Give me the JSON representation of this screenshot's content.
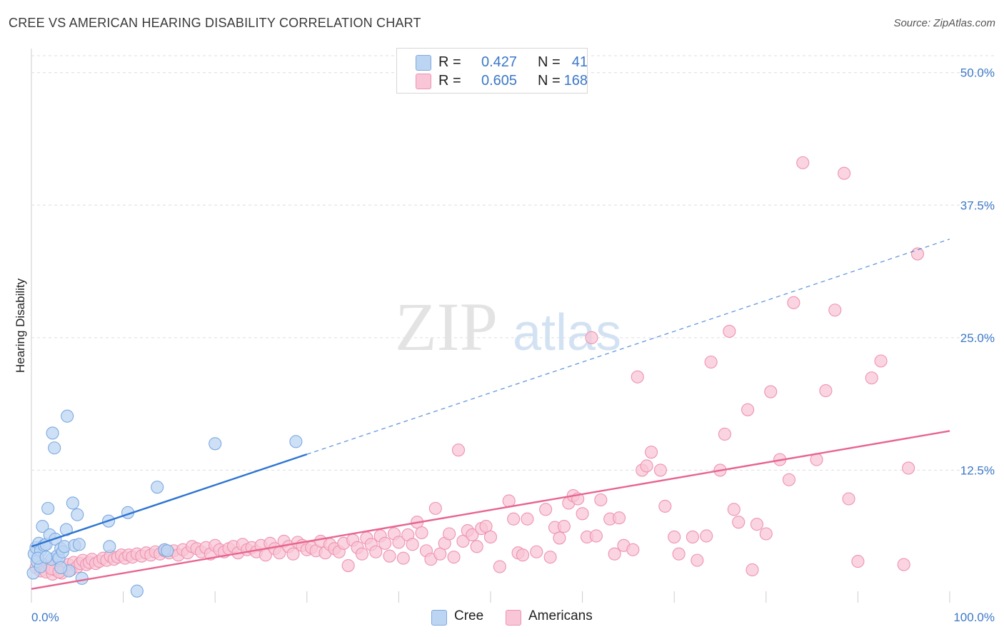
{
  "title": "CREE VS AMERICAN HEARING DISABILITY CORRELATION CHART",
  "source": "Source: ZipAtlas.com",
  "watermark": {
    "zip": "ZIP",
    "atlas": "atlas"
  },
  "colors": {
    "cree": "#7ea9e0",
    "cree_fill": "#bcd5f3",
    "cree_line": "#2d74d2",
    "americans": "#ee93b0",
    "americans_fill": "#f8c6d6",
    "americans_line": "#e8648f",
    "tick": "#3c78c8",
    "grid": "#dddddd"
  },
  "legend": {
    "rows": [
      {
        "series": "Cree",
        "r_label": "R =",
        "r_value": "0.427",
        "n_label": "N =",
        "n_value": "41"
      },
      {
        "series": "Americans",
        "r_label": "R =",
        "r_value": "0.605",
        "n_label": "N =",
        "n_value": "168"
      }
    ]
  },
  "bottom_legend": [
    {
      "label": "Cree"
    },
    {
      "label": "Americans"
    }
  ],
  "chart_data": {
    "type": "scatter",
    "title": "CREE VS AMERICAN HEARING DISABILITY CORRELATION CHART",
    "xlabel": "",
    "ylabel": "Hearing Disability",
    "xlim": [
      0,
      100
    ],
    "ylim": [
      0,
      52
    ],
    "x_tick_labels": [
      "0.0%",
      "100.0%"
    ],
    "y_ticks": [
      12.5,
      25.0,
      37.5,
      50.0
    ],
    "y_tick_labels": [
      "12.5%",
      "25.0%",
      "37.5%",
      "50.0%"
    ],
    "grid": "horizontal dashed",
    "legend_placement": "top-center",
    "series": [
      {
        "name": "Cree",
        "trend": {
          "x0": 0,
          "y0": 5.3,
          "x1": 30,
          "y1": 14.0,
          "dashed_to_x": 100,
          "dashed_to_y": 34.3
        },
        "points": [
          [
            0.2,
            2.8
          ],
          [
            0.3,
            4.6
          ],
          [
            0.5,
            5.2
          ],
          [
            0.6,
            3.9
          ],
          [
            0.8,
            5.6
          ],
          [
            1.0,
            4.9
          ],
          [
            1.2,
            7.2
          ],
          [
            1.4,
            5.4
          ],
          [
            1.6,
            5.5
          ],
          [
            1.8,
            8.9
          ],
          [
            2.0,
            6.4
          ],
          [
            2.2,
            4.1
          ],
          [
            2.3,
            16.0
          ],
          [
            2.5,
            14.6
          ],
          [
            2.6,
            6.0
          ],
          [
            2.8,
            4.4
          ],
          [
            3.0,
            4.2
          ],
          [
            3.2,
            5.1
          ],
          [
            3.4,
            4.8
          ],
          [
            3.6,
            5.3
          ],
          [
            3.8,
            6.9
          ],
          [
            3.9,
            17.6
          ],
          [
            4.1,
            3.0
          ],
          [
            4.5,
            9.4
          ],
          [
            4.7,
            5.4
          ],
          [
            5.0,
            8.3
          ],
          [
            5.2,
            5.5
          ],
          [
            5.5,
            2.3
          ],
          [
            8.4,
            7.7
          ],
          [
            8.5,
            5.3
          ],
          [
            10.5,
            8.5
          ],
          [
            11.5,
            1.1
          ],
          [
            13.7,
            10.9
          ],
          [
            14.5,
            5.0
          ],
          [
            14.8,
            4.9
          ],
          [
            20.0,
            15.0
          ],
          [
            28.8,
            15.2
          ],
          [
            1.0,
            3.4
          ],
          [
            0.7,
            4.2
          ],
          [
            1.6,
            4.3
          ],
          [
            3.2,
            3.3
          ]
        ]
      },
      {
        "name": "Americans",
        "trend": {
          "x0": 0,
          "y0": 1.3,
          "x1": 100,
          "y1": 16.2
        },
        "points": [
          [
            0.5,
            3.3
          ],
          [
            1.0,
            3.0
          ],
          [
            1.3,
            3.6
          ],
          [
            1.6,
            2.9
          ],
          [
            2.0,
            3.4
          ],
          [
            2.3,
            2.7
          ],
          [
            2.6,
            3.1
          ],
          [
            3.0,
            3.5
          ],
          [
            3.3,
            2.8
          ],
          [
            3.6,
            3.3
          ],
          [
            4.0,
            3.6
          ],
          [
            4.3,
            3.1
          ],
          [
            4.6,
            3.8
          ],
          [
            5.0,
            3.4
          ],
          [
            5.3,
            3.7
          ],
          [
            5.6,
            4.0
          ],
          [
            6.0,
            3.6
          ],
          [
            6.3,
            3.8
          ],
          [
            6.6,
            4.1
          ],
          [
            7.0,
            3.7
          ],
          [
            7.4,
            3.9
          ],
          [
            7.8,
            4.2
          ],
          [
            8.2,
            4.0
          ],
          [
            8.6,
            4.4
          ],
          [
            9.0,
            4.1
          ],
          [
            9.4,
            4.3
          ],
          [
            9.8,
            4.5
          ],
          [
            10.2,
            4.2
          ],
          [
            10.6,
            4.5
          ],
          [
            11.0,
            4.3
          ],
          [
            11.5,
            4.6
          ],
          [
            12.0,
            4.4
          ],
          [
            12.5,
            4.7
          ],
          [
            13.0,
            4.5
          ],
          [
            13.5,
            4.8
          ],
          [
            14.0,
            4.6
          ],
          [
            14.5,
            4.9
          ],
          [
            15.0,
            4.7
          ],
          [
            15.5,
            4.9
          ],
          [
            16.0,
            4.5
          ],
          [
            16.5,
            5.0
          ],
          [
            17.0,
            4.7
          ],
          [
            17.5,
            5.3
          ],
          [
            18.0,
            5.1
          ],
          [
            18.5,
            4.8
          ],
          [
            19.0,
            5.2
          ],
          [
            19.5,
            4.6
          ],
          [
            20.0,
            5.4
          ],
          [
            20.5,
            5.0
          ],
          [
            21.0,
            4.8
          ],
          [
            21.5,
            5.1
          ],
          [
            22.0,
            5.3
          ],
          [
            22.5,
            4.7
          ],
          [
            23.0,
            5.5
          ],
          [
            23.5,
            5.0
          ],
          [
            24.0,
            5.2
          ],
          [
            24.5,
            4.8
          ],
          [
            25.0,
            5.4
          ],
          [
            25.5,
            4.5
          ],
          [
            26.0,
            5.6
          ],
          [
            26.5,
            5.1
          ],
          [
            27.0,
            4.7
          ],
          [
            27.5,
            5.8
          ],
          [
            28.0,
            5.3
          ],
          [
            28.5,
            4.6
          ],
          [
            29.0,
            5.7
          ],
          [
            29.5,
            5.4
          ],
          [
            30.0,
            5.0
          ],
          [
            30.5,
            5.2
          ],
          [
            31.0,
            4.9
          ],
          [
            31.5,
            5.8
          ],
          [
            32.0,
            4.7
          ],
          [
            32.5,
            5.5
          ],
          [
            33.0,
            5.1
          ],
          [
            33.5,
            4.8
          ],
          [
            34.0,
            5.6
          ],
          [
            34.5,
            3.5
          ],
          [
            35.0,
            5.9
          ],
          [
            35.5,
            5.2
          ],
          [
            36.0,
            4.6
          ],
          [
            36.5,
            6.1
          ],
          [
            37.0,
            5.5
          ],
          [
            37.5,
            4.8
          ],
          [
            38.0,
            6.3
          ],
          [
            38.5,
            5.6
          ],
          [
            39.0,
            4.4
          ],
          [
            39.5,
            6.5
          ],
          [
            40.0,
            5.7
          ],
          [
            40.5,
            4.2
          ],
          [
            41.0,
            6.4
          ],
          [
            41.5,
            5.5
          ],
          [
            42.0,
            7.6
          ],
          [
            42.5,
            6.6
          ],
          [
            43.0,
            4.9
          ],
          [
            43.5,
            4.1
          ],
          [
            44.0,
            8.9
          ],
          [
            44.5,
            4.6
          ],
          [
            45.0,
            5.6
          ],
          [
            45.5,
            6.5
          ],
          [
            46.0,
            4.3
          ],
          [
            46.5,
            14.4
          ],
          [
            47.0,
            5.8
          ],
          [
            47.5,
            6.8
          ],
          [
            48.0,
            6.4
          ],
          [
            48.5,
            5.3
          ],
          [
            49.0,
            7.0
          ],
          [
            49.5,
            7.2
          ],
          [
            50.0,
            6.2
          ],
          [
            51.0,
            3.4
          ],
          [
            52.0,
            9.6
          ],
          [
            52.5,
            7.9
          ],
          [
            53.0,
            4.7
          ],
          [
            53.5,
            4.5
          ],
          [
            54.0,
            7.9
          ],
          [
            55.0,
            4.8
          ],
          [
            56.0,
            8.8
          ],
          [
            56.5,
            4.3
          ],
          [
            57.0,
            7.1
          ],
          [
            57.5,
            6.1
          ],
          [
            58.0,
            7.2
          ],
          [
            58.5,
            9.4
          ],
          [
            59.0,
            10.1
          ],
          [
            59.5,
            9.8
          ],
          [
            60.0,
            8.4
          ],
          [
            60.5,
            6.2
          ],
          [
            61.0,
            25.0
          ],
          [
            61.5,
            6.3
          ],
          [
            62.0,
            9.7
          ],
          [
            63.0,
            7.9
          ],
          [
            63.5,
            4.6
          ],
          [
            64.0,
            8.0
          ],
          [
            64.5,
            5.4
          ],
          [
            65.5,
            5.0
          ],
          [
            66.0,
            21.3
          ],
          [
            66.5,
            12.5
          ],
          [
            67.0,
            12.9
          ],
          [
            67.5,
            14.2
          ],
          [
            68.5,
            12.5
          ],
          [
            69.0,
            9.1
          ],
          [
            70.0,
            6.2
          ],
          [
            70.5,
            4.6
          ],
          [
            72.0,
            6.2
          ],
          [
            72.5,
            4.0
          ],
          [
            73.5,
            6.3
          ],
          [
            74.0,
            22.7
          ],
          [
            75.0,
            12.5
          ],
          [
            75.5,
            15.9
          ],
          [
            76.0,
            25.6
          ],
          [
            76.5,
            8.8
          ],
          [
            77.0,
            7.6
          ],
          [
            78.0,
            18.2
          ],
          [
            78.5,
            3.1
          ],
          [
            79.0,
            7.4
          ],
          [
            80.0,
            6.5
          ],
          [
            80.5,
            19.9
          ],
          [
            81.5,
            13.5
          ],
          [
            82.5,
            11.6
          ],
          [
            83.0,
            28.3
          ],
          [
            84.0,
            41.5
          ],
          [
            85.5,
            13.5
          ],
          [
            86.5,
            20.0
          ],
          [
            87.5,
            27.6
          ],
          [
            88.5,
            40.5
          ],
          [
            89.0,
            9.8
          ],
          [
            90.0,
            3.9
          ],
          [
            91.5,
            21.2
          ],
          [
            92.5,
            22.8
          ],
          [
            95.0,
            3.6
          ],
          [
            95.5,
            12.7
          ],
          [
            96.5,
            32.9
          ],
          [
            2.2,
            3.2
          ],
          [
            3.0,
            2.9
          ]
        ]
      }
    ]
  }
}
